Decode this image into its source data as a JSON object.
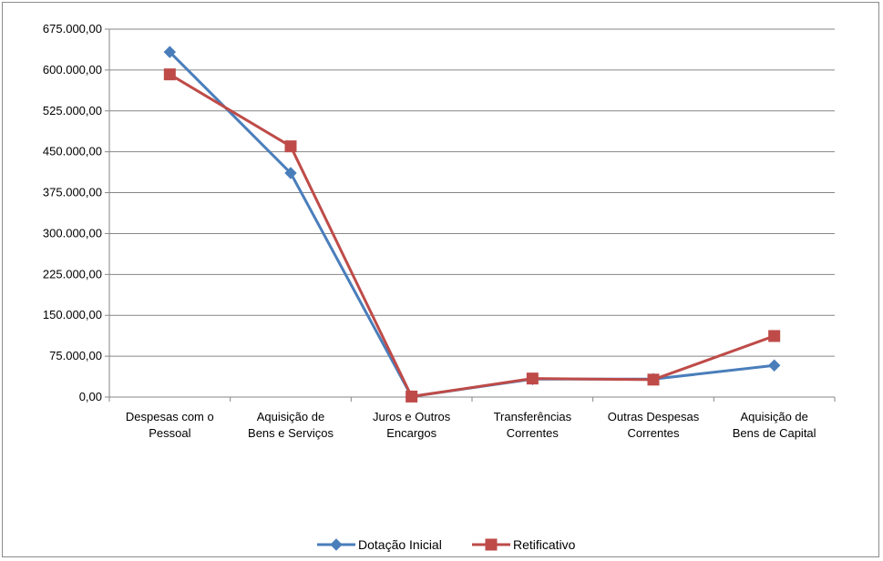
{
  "chart_data": {
    "type": "line",
    "categories": [
      [
        "Despesas com o",
        "Pessoal"
      ],
      [
        "Aquisição de",
        "Bens e Serviços"
      ],
      [
        "Juros e Outros",
        "Encargos"
      ],
      [
        "Transferências",
        "Correntes"
      ],
      [
        "Outras Despesas",
        "Correntes"
      ],
      [
        "Aquisição de",
        "Bens de Capital"
      ]
    ],
    "series": [
      {
        "name": "Dotação Inicial",
        "color": "#4a7ebb",
        "marker": "diamond",
        "values": [
          633000,
          411000,
          1000,
          33000,
          33000,
          58000
        ]
      },
      {
        "name": "Retificativo",
        "color": "#be4b48",
        "marker": "square",
        "values": [
          592000,
          460000,
          1000,
          34000,
          32000,
          112000
        ]
      }
    ],
    "ylim": [
      0,
      675000
    ],
    "yticks": [
      "0,00",
      "75.000,00",
      "150.000,00",
      "225.000,00",
      "300.000,00",
      "375.000,00",
      "450.000,00",
      "525.000,00",
      "600.000,00",
      "675.000,00"
    ],
    "grid": true,
    "legend_position": "bottom"
  }
}
